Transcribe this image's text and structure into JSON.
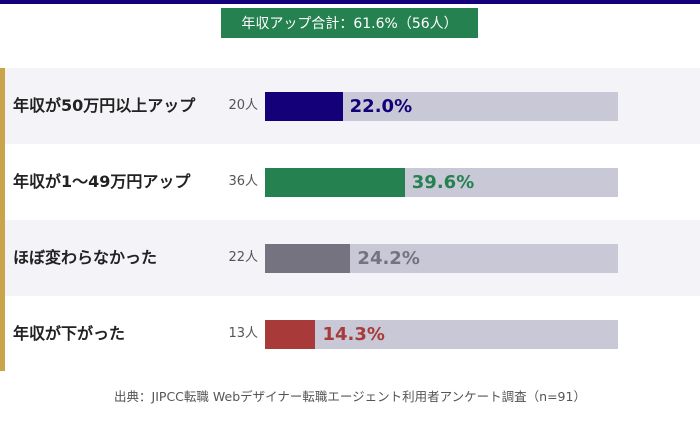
{
  "summary": "年収アップ合計：61.6%（56人）",
  "chart_data": {
    "type": "bar",
    "orientation": "horizontal",
    "categories": [
      "年収が50万円以上アップ",
      "年収が1〜49万円アップ",
      "ほぼ変わらなかった",
      "年収が下がった"
    ],
    "counts": [
      "20人",
      "36人",
      "22人",
      "13人"
    ],
    "values": [
      22.0,
      39.6,
      24.2,
      14.3
    ],
    "labels": [
      "22.0%",
      "39.6%",
      "24.2%",
      "14.3%"
    ],
    "colors": [
      "#140078",
      "#268150",
      "#74737f",
      "#a83a3a"
    ],
    "track_color": "#c9c8d6",
    "xlim": [
      0,
      100
    ]
  },
  "source": "出典：JIPCC転職 Webデザイナー転職エージェント利用者アンケート調査（n=91）"
}
